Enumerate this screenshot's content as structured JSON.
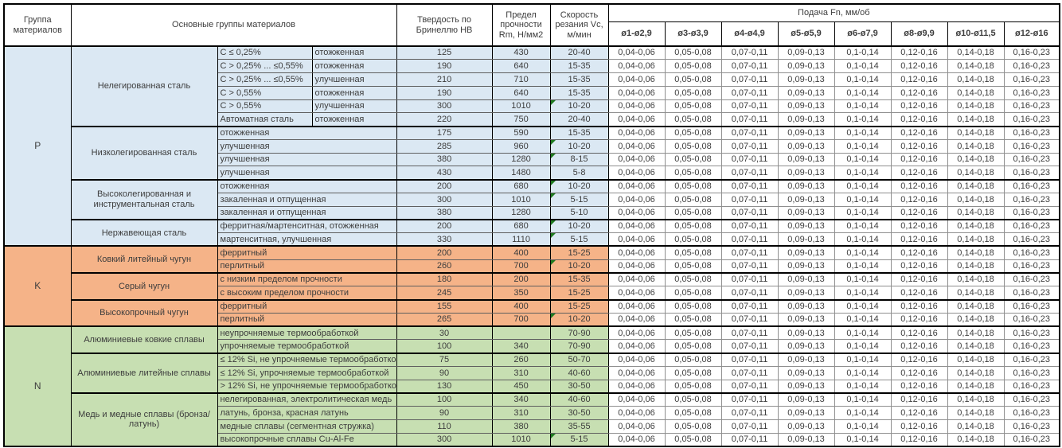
{
  "header": {
    "group": "Группа материалов",
    "materials": "Основные группы материалов",
    "hardness": "Твердость по Бринеллю HB",
    "strength": "Предел прочности Rm, Н/мм2",
    "speed": "Скорость резания Vc, м/мин",
    "feed": "Подача Fn, мм/об",
    "feed_columns": [
      "ø1-ø2,9",
      "ø3-ø3,9",
      "ø4-ø4,9",
      "ø5-ø5,9",
      "ø6-ø7,9",
      "ø8-ø9,9",
      "ø10-ø11,5",
      "ø12-ø16"
    ]
  },
  "feed_values": [
    "0,04-0,06",
    "0,05-0,08",
    "0,07-0,11",
    "0,09-0,13",
    "0,1-0,14",
    "0,12-0,16",
    "0,14-0,18",
    "0,16-0,23"
  ],
  "colors": {
    "group_P": "#dbe8f3",
    "group_K": "#f5b388",
    "group_N": "#c7dfb2",
    "marker": "#1f7a1f"
  },
  "sections": [
    {
      "group": "P",
      "color": "#dbe8f3",
      "subgroups": [
        {
          "name": "Нелегированная сталь",
          "rows": [
            {
              "a": "C ≤ 0,25%",
              "b": "отожженная",
              "hb": "125",
              "rm": "430",
              "vc": "20-40",
              "tri": false
            },
            {
              "a": "C > 0,25% ... ≤0,55%",
              "b": "отожженная",
              "hb": "190",
              "rm": "640",
              "vc": "15-35",
              "tri": false
            },
            {
              "a": "C > 0,25% ... ≤0,55%",
              "b": "улучшенная",
              "hb": "210",
              "rm": "710",
              "vc": "15-35",
              "tri": false
            },
            {
              "a": "C > 0,55%",
              "b": "отожженная",
              "hb": "190",
              "rm": "640",
              "vc": "15-35",
              "tri": false
            },
            {
              "a": "C > 0,55%",
              "b": "улучшенная",
              "hb": "300",
              "rm": "1010",
              "vc": "10-20",
              "tri": true
            },
            {
              "a": "Автоматная сталь",
              "b": "отожженная",
              "hb": "220",
              "rm": "750",
              "vc": "20-40",
              "tri": false
            }
          ]
        },
        {
          "name": "Низколегированная сталь",
          "rows": [
            {
              "a": "отожженная",
              "hb": "175",
              "rm": "590",
              "vc": "15-35",
              "tri": false
            },
            {
              "a": "улучшенная",
              "hb": "285",
              "rm": "960",
              "vc": "10-20",
              "tri": true
            },
            {
              "a": "улучшенная",
              "hb": "380",
              "rm": "1280",
              "vc": "8-15",
              "tri": true
            },
            {
              "a": "улучшенная",
              "hb": "430",
              "rm": "1480",
              "vc": "5-8",
              "tri": false
            }
          ]
        },
        {
          "name": "Высоколегированная и инструментальная сталь",
          "rows": [
            {
              "a": "отожженная",
              "hb": "200",
              "rm": "680",
              "vc": "10-20",
              "tri": true
            },
            {
              "a": "закаленная и отпущенная",
              "hb": "300",
              "rm": "1010",
              "vc": "5-15",
              "tri": true
            },
            {
              "a": "закаленная и отпущенная",
              "hb": "380",
              "rm": "1280",
              "vc": "5-10",
              "tri": false
            }
          ]
        },
        {
          "name": "Нержавеющая сталь",
          "rows": [
            {
              "a": "ферритная/мартенситная, отожженная",
              "hb": "200",
              "rm": "680",
              "vc": "10-20",
              "tri": true
            },
            {
              "a": "мартенситная, улучшенная",
              "hb": "330",
              "rm": "1110",
              "vc": "5-15",
              "tri": true
            }
          ]
        }
      ]
    },
    {
      "group": "K",
      "color": "#f5b388",
      "subgroups": [
        {
          "name": "Ковкий литейный чугун",
          "rows": [
            {
              "a": "ферритный",
              "hb": "200",
              "rm": "400",
              "vc": "15-25",
              "tri": false
            },
            {
              "a": "перлитный",
              "hb": "260",
              "rm": "700",
              "vc": "10-20",
              "tri": true
            }
          ]
        },
        {
          "name": "Серый чугун",
          "rows": [
            {
              "a": "с низким пределом прочности",
              "hb": "180",
              "rm": "200",
              "vc": "15-35",
              "tri": false
            },
            {
              "a": "с высоким пределом прочности",
              "hb": "245",
              "rm": "350",
              "vc": "15-25",
              "tri": false
            }
          ]
        },
        {
          "name": "Высокопрочный чугун",
          "rows": [
            {
              "a": "ферритный",
              "hb": "155",
              "rm": "400",
              "vc": "15-25",
              "tri": false
            },
            {
              "a": "перлитный",
              "hb": "265",
              "rm": "700",
              "vc": "10-20",
              "tri": true
            }
          ]
        }
      ]
    },
    {
      "group": "N",
      "color": "#c7dfb2",
      "subgroups": [
        {
          "name": "Алюминиевые ковкие сплавы",
          "rows": [
            {
              "a": "неупрочняемые термообработкой",
              "hb": "30",
              "rm": "",
              "vc": "70-90",
              "tri": false
            },
            {
              "a": "упрочняемые термообработкой",
              "hb": "100",
              "rm": "340",
              "vc": "70-90",
              "tri": false
            }
          ]
        },
        {
          "name": "Алюминиевые литейные сплавы",
          "rows": [
            {
              "a": "≤ 12% Si, не упрочняемые термообработкой",
              "hb": "75",
              "rm": "260",
              "vc": "50-70",
              "tri": false
            },
            {
              "a": "≤ 12% Si, упрочняемые термообработкой",
              "hb": "90",
              "rm": "310",
              "vc": "40-60",
              "tri": false
            },
            {
              "a": "> 12% Si, не упрочняемые термообработкой",
              "hb": "130",
              "rm": "450",
              "vc": "30-50",
              "tri": false
            }
          ]
        },
        {
          "name": "Медь и медные сплавы (бронза/латунь)",
          "rows": [
            {
              "a": "нелегированная, электролитическая медь",
              "hb": "100",
              "rm": "340",
              "vc": "40-60",
              "tri": false
            },
            {
              "a": "латунь, бронза, красная латунь",
              "hb": "90",
              "rm": "310",
              "vc": "30-50",
              "tri": false
            },
            {
              "a": "медные сплавы (сегментная стружка)",
              "hb": "110",
              "rm": "380",
              "vc": "35-55",
              "tri": false
            },
            {
              "a": "высокопрочные сплавы Cu-Al-Fe",
              "hb": "300",
              "rm": "1010",
              "vc": "5-15",
              "tri": true
            }
          ]
        }
      ]
    }
  ]
}
